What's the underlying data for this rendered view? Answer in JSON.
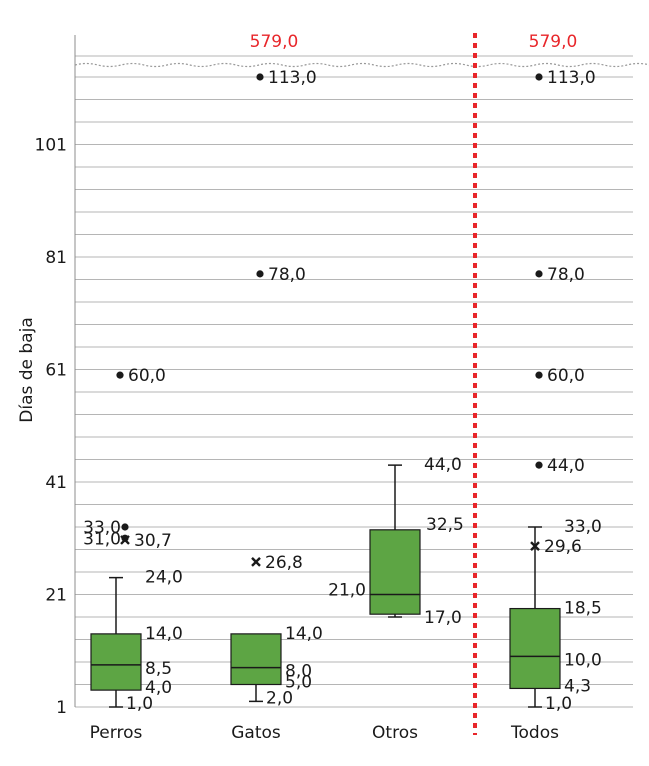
{
  "chart_data": {
    "type": "boxplot",
    "ylabel": "Días de baja",
    "y_ticks": [
      "1",
      "21",
      "41",
      "61",
      "81",
      "101"
    ],
    "ylim": [
      1,
      116
    ],
    "axis_break_label": "579,0",
    "grid": true,
    "categories": [
      "Perros",
      "Gatos",
      "Otros",
      "Todos"
    ],
    "boxes": [
      {
        "category": "Perros",
        "min": 1.0,
        "q1": 4.0,
        "median": 8.5,
        "q3": 14.0,
        "max": 24.0,
        "mean": 30.7,
        "min_label": "1,0",
        "q1_label": "4,0",
        "median_label": "8,5",
        "q3_label": "14,0",
        "max_label": "24,0",
        "mean_label": "30,7",
        "outliers": [
          {
            "value": 60.0,
            "label": "60,0"
          },
          {
            "value": 33.0,
            "label": "33,0"
          },
          {
            "value": 31.0,
            "label": "31,0"
          }
        ],
        "break_outlier": ""
      },
      {
        "category": "Gatos",
        "min": 2.0,
        "q1": 5.0,
        "median": 8.0,
        "q3": 14.0,
        "max": 14.0,
        "mean": 26.8,
        "min_label": "2,0",
        "q1_label": "5,0",
        "median_label": "8,0",
        "q3_label": "14,0",
        "max_label": "",
        "mean_label": "26,8",
        "outliers": [
          {
            "value": 113.0,
            "label": "113,0"
          },
          {
            "value": 78.0,
            "label": "78,0"
          }
        ],
        "break_outlier": "579,0"
      },
      {
        "category": "Otros",
        "min": 17.0,
        "q1": 17.5,
        "median": 21.0,
        "q3": 32.5,
        "max": 44.0,
        "mean": null,
        "min_label": "17,0",
        "q1_label": "",
        "median_label": "21,0",
        "q3_label": "32,5",
        "max_label": "44,0",
        "mean_label": "",
        "outliers": [],
        "break_outlier": ""
      },
      {
        "category": "Todos",
        "min": 1.0,
        "q1": 4.3,
        "median": 10.0,
        "q3": 18.5,
        "max": 33.0,
        "mean": 29.6,
        "min_label": "1,0",
        "q1_label": "4,3",
        "median_label": "10,0",
        "q3_label": "18,5",
        "max_label": "33,0",
        "mean_label": "29,6",
        "outliers": [
          {
            "value": 113.0,
            "label": "113,0"
          },
          {
            "value": 78.0,
            "label": "78,0"
          },
          {
            "value": 60.0,
            "label": "60,0"
          },
          {
            "value": 44.0,
            "label": "44,0"
          }
        ],
        "break_outlier": "579,0"
      }
    ],
    "colors": {
      "box_fill": "#5da544",
      "box_stroke": "#1a1a1a",
      "grid": "#b5b5b5",
      "divider": "#e8262a",
      "break_label": "#e8262a",
      "text": "#1a1a1a"
    }
  }
}
